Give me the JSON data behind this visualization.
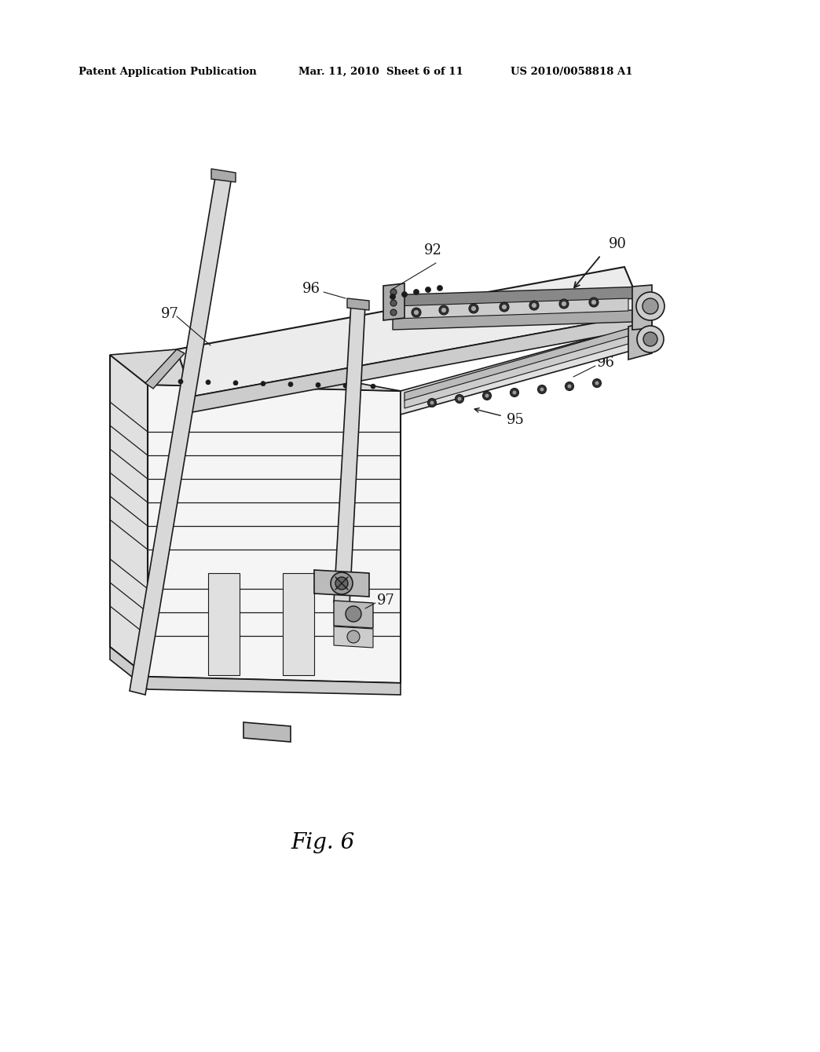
{
  "background_color": "#ffffff",
  "header_left": "Patent Application Publication",
  "header_mid": "Mar. 11, 2010  Sheet 6 of 11",
  "header_right": "US 2010/0058818 A1",
  "figure_label": "Fig. 6",
  "line_color": "#1a1a1a",
  "light_gray": "#e8e8e8",
  "mid_gray": "#c8c8c8",
  "dark_gray": "#888888"
}
